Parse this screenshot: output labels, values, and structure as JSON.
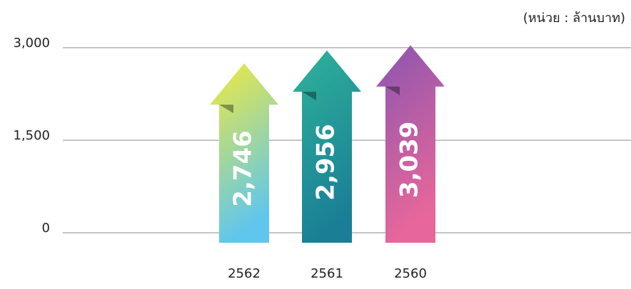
{
  "chart_data": {
    "type": "arrow-bar",
    "subtitle": "(หน่วย : ล้านบาท)",
    "categories": [
      "2562",
      "2561",
      "2560"
    ],
    "values": [
      2746,
      2956,
      3039
    ],
    "value_labels": [
      "2,746",
      "2,956",
      "3,039"
    ],
    "colors": [
      [
        "#f2ea3c",
        "#5fc6ee"
      ],
      [
        "#2fb39a",
        "#1a7f96"
      ],
      [
        "#8a55b0",
        "#e8679a"
      ]
    ],
    "ylim": [
      0,
      3000
    ],
    "yticks": [
      0,
      {
        "value": 1500,
        "label": "1,500"
      },
      {
        "value": 3000,
        "label": "3,000"
      }
    ],
    "grid": true
  }
}
